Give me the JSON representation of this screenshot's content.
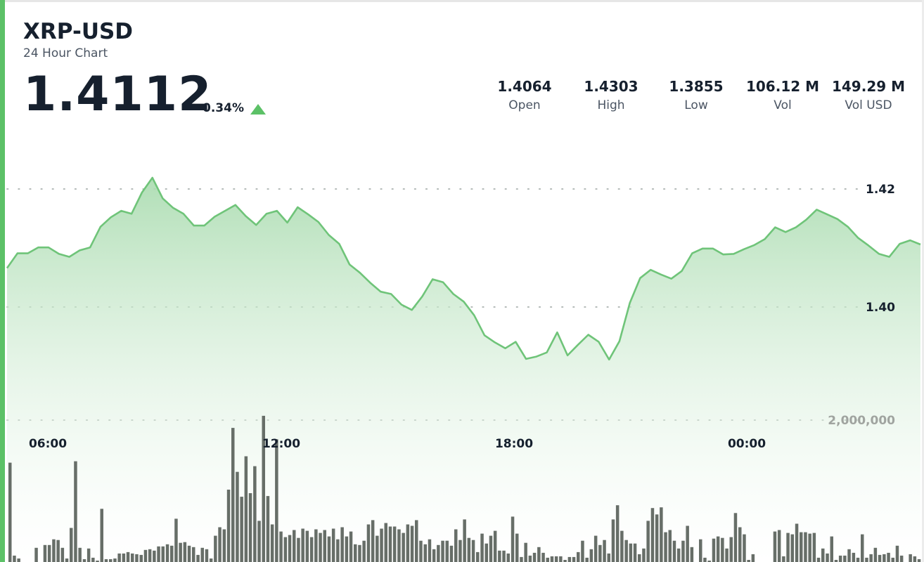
{
  "header": {
    "symbol": "XRP-USD",
    "subtitle": "24 Hour Chart",
    "price": "1.4112",
    "change": "0.34%",
    "change_direction": "up"
  },
  "stats": [
    {
      "value": "1.4064",
      "label": "Open"
    },
    {
      "value": "1.4303",
      "label": "High"
    },
    {
      "value": "1.3855",
      "label": "Low"
    },
    {
      "value": "106.12 M",
      "label": "Vol"
    },
    {
      "value": "149.29 M",
      "label": "Vol USD"
    }
  ],
  "colors": {
    "accent": "#5cc167",
    "line": "#6fc479",
    "area_top": "#a8dbae",
    "volume_bar": "#5f6660",
    "text": "#16202e"
  },
  "chart_data": {
    "type": "line",
    "title": "",
    "xlabel": "",
    "ylabel": "",
    "x_ticks": [
      "06:00",
      "12:00",
      "18:00",
      "00:00"
    ],
    "y_ticks": [
      "1.42",
      "1.40"
    ],
    "ylim": [
      1.3787,
      1.4414
    ],
    "grid": true,
    "price_series": {
      "name": "",
      "values": [
        1.4066,
        1.4091,
        1.4091,
        1.4101,
        1.4101,
        1.409,
        1.4085,
        1.4096,
        1.4101,
        1.4136,
        1.4152,
        1.4163,
        1.4158,
        1.4194,
        1.4219,
        1.4184,
        1.4168,
        1.4158,
        1.4138,
        1.4138,
        1.4153,
        1.4163,
        1.4173,
        1.4154,
        1.4139,
        1.4158,
        1.4163,
        1.4143,
        1.4169,
        1.4157,
        1.4144,
        1.4122,
        1.4107,
        1.4072,
        1.4058,
        1.4041,
        1.4026,
        1.4022,
        1.4004,
        1.3995,
        1.4018,
        1.4047,
        1.4042,
        1.4022,
        1.4009,
        1.3986,
        1.3952,
        1.394,
        1.393,
        1.3941,
        1.3912,
        1.3916,
        1.3923,
        1.3957,
        1.3918,
        1.3936,
        1.3953,
        1.3941,
        1.3911,
        1.3942,
        1.4007,
        1.4049,
        1.4063,
        1.4055,
        1.4048,
        1.4061,
        1.4091,
        1.4099,
        1.4099,
        1.4089,
        1.409,
        1.4098,
        1.4105,
        1.4115,
        1.4135,
        1.4127,
        1.4135,
        1.4148,
        1.4165,
        1.4157,
        1.4149,
        1.4136,
        1.4117,
        1.4104,
        1.409,
        1.4085,
        1.4107,
        1.4113,
        1.4106
      ]
    },
    "volume_series": {
      "name": "",
      "y_tick": "2,000,000",
      "values": [
        1.4,
        0.09,
        0.05,
        0.0,
        0.0,
        0.0,
        0.2,
        0.0,
        0.24,
        0.24,
        0.32,
        0.31,
        0.2,
        0.05,
        0.48,
        1.42,
        0.2,
        0.04,
        0.19,
        0.06,
        0.02,
        0.75,
        0.04,
        0.04,
        0.05,
        0.12,
        0.12,
        0.14,
        0.12,
        0.11,
        0.1,
        0.17,
        0.18,
        0.16,
        0.22,
        0.22,
        0.25,
        0.23,
        0.61,
        0.27,
        0.28,
        0.23,
        0.21,
        0.1,
        0.2,
        0.18,
        0.05,
        0.37,
        0.49,
        0.46,
        1.02,
        1.89,
        1.27,
        0.92,
        1.49,
        0.97,
        1.35,
        0.58,
        2.06,
        0.93,
        0.53,
        1.73,
        0.43,
        0.35,
        0.38,
        0.45,
        0.34,
        0.47,
        0.44,
        0.35,
        0.46,
        0.41,
        0.45,
        0.36,
        0.47,
        0.32,
        0.49,
        0.36,
        0.43,
        0.25,
        0.24,
        0.3,
        0.53,
        0.59,
        0.37,
        0.47,
        0.55,
        0.5,
        0.5,
        0.46,
        0.41,
        0.53,
        0.51,
        0.59,
        0.3,
        0.25,
        0.32,
        0.18,
        0.24,
        0.3,
        0.3,
        0.23,
        0.46,
        0.31,
        0.6,
        0.34,
        0.31,
        0.14,
        0.4,
        0.26,
        0.37,
        0.44,
        0.16,
        0.16,
        0.12,
        0.64,
        0.4,
        0.07,
        0.27,
        0.09,
        0.13,
        0.21,
        0.13,
        0.06,
        0.08,
        0.08,
        0.08,
        0.03,
        0.07,
        0.07,
        0.14,
        0.3,
        0.06,
        0.18,
        0.37,
        0.24,
        0.31,
        0.12,
        0.6,
        0.8,
        0.44,
        0.31,
        0.26,
        0.26,
        0.11,
        0.19,
        0.58,
        0.76,
        0.67,
        0.77,
        0.42,
        0.45,
        0.3,
        0.19,
        0.3,
        0.51,
        0.21,
        0.0,
        0.32,
        0.06,
        0.02,
        0.33,
        0.36,
        0.34,
        0.19,
        0.35,
        0.69,
        0.49,
        0.39,
        0.03,
        0.11,
        0.0,
        0.0,
        0.0,
        0.0,
        0.43,
        0.45,
        0.08,
        0.41,
        0.39,
        0.54,
        0.42,
        0.42,
        0.4,
        0.41,
        0.06,
        0.19,
        0.12,
        0.36,
        0.03,
        0.09,
        0.09,
        0.18,
        0.13,
        0.06,
        0.39,
        0.06,
        0.11,
        0.2,
        0.1,
        0.11,
        0.13,
        0.06,
        0.23,
        0.09,
        0.0,
        0.11,
        0.08,
        0.04
      ]
    }
  }
}
